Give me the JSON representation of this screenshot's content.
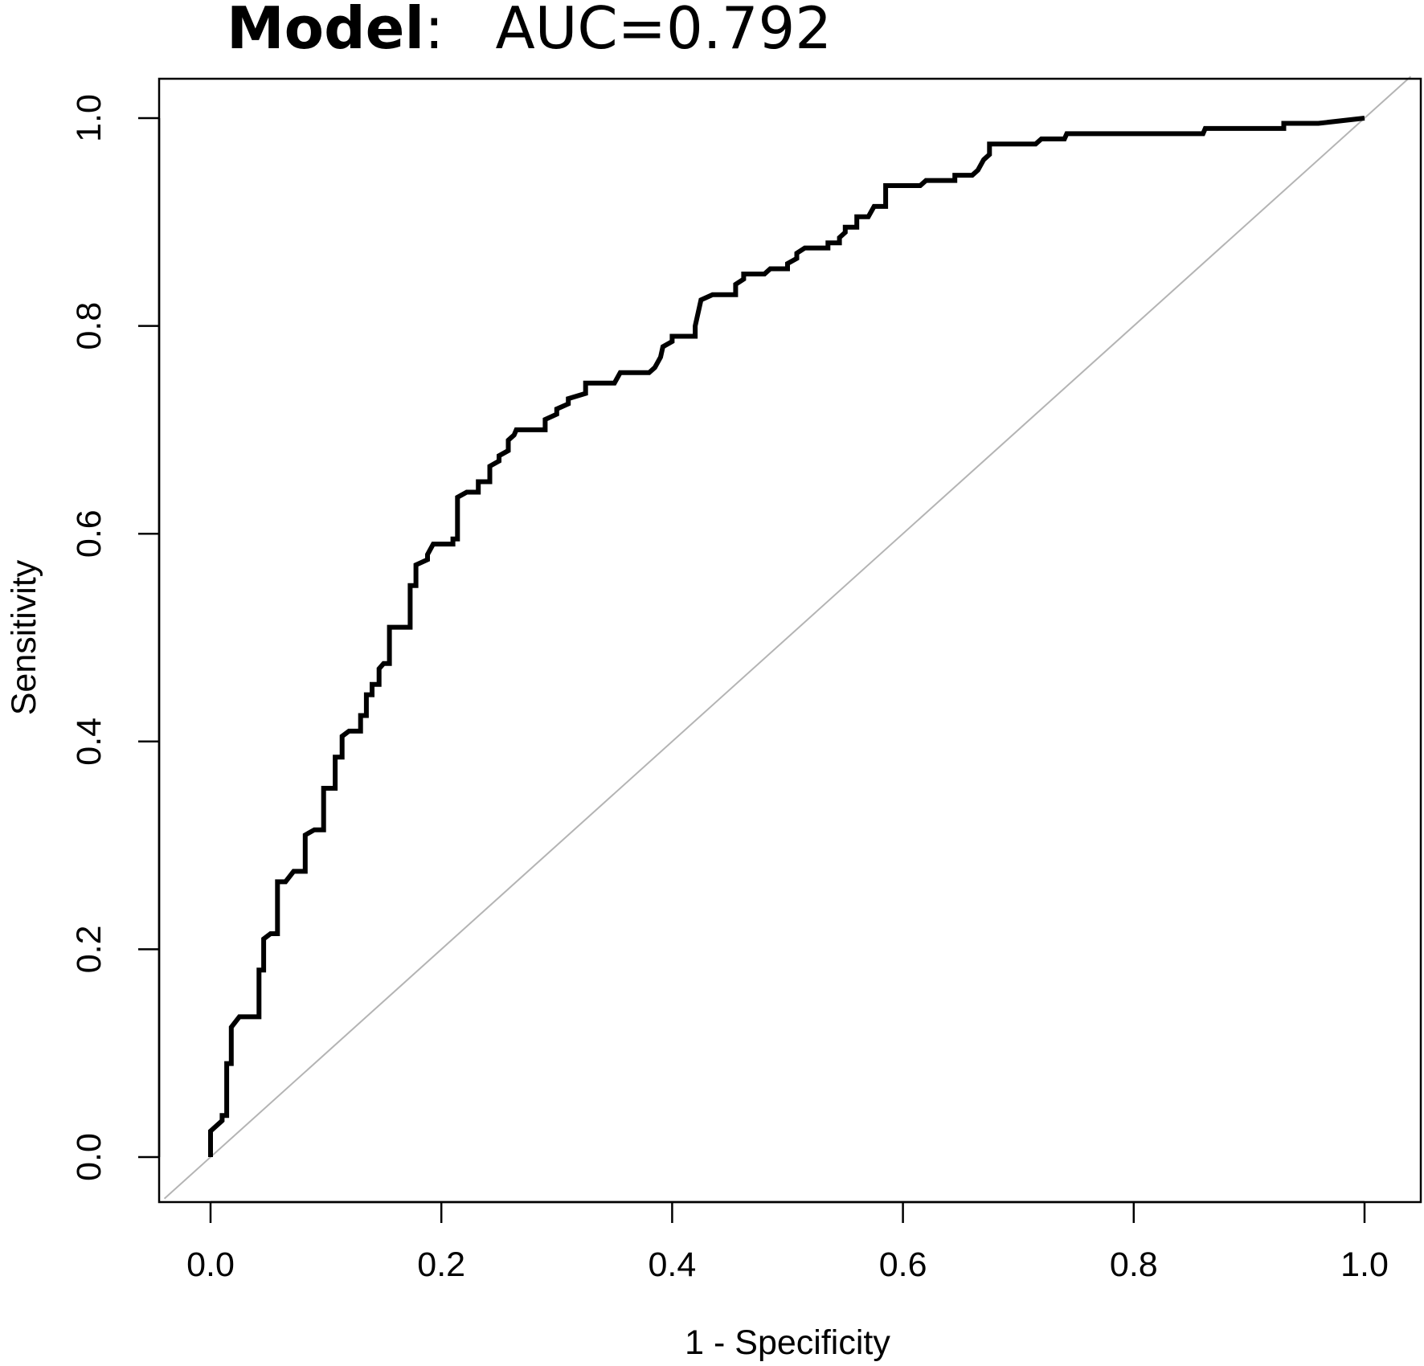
{
  "chart_data": {
    "type": "line",
    "title_bold": "Model",
    "title_sep": ":",
    "title_rest": "AUC=0.792",
    "xlabel": "1 - Specificity",
    "ylabel": "Sensitivity",
    "xlim": [
      -0.04,
      1.04
    ],
    "ylim": [
      -0.04,
      1.04
    ],
    "x_ticks": [
      "0.0",
      "0.2",
      "0.4",
      "0.6",
      "0.8",
      "1.0"
    ],
    "y_ticks": [
      "0.0",
      "0.2",
      "0.4",
      "0.6",
      "0.8",
      "1.0"
    ],
    "grid": false,
    "reference_line": {
      "from": [
        -0.04,
        -0.04
      ],
      "to": [
        1.04,
        1.04
      ],
      "color": "#b4b4b4"
    },
    "series": [
      {
        "color": "#000000",
        "points": [
          [
            0.0,
            0.0
          ],
          [
            0.0,
            0.025
          ],
          [
            0.01,
            0.035
          ],
          [
            0.01,
            0.04
          ],
          [
            0.014,
            0.04
          ],
          [
            0.014,
            0.09
          ],
          [
            0.018,
            0.09
          ],
          [
            0.018,
            0.125
          ],
          [
            0.025,
            0.135
          ],
          [
            0.042,
            0.135
          ],
          [
            0.042,
            0.18
          ],
          [
            0.046,
            0.18
          ],
          [
            0.046,
            0.21
          ],
          [
            0.052,
            0.215
          ],
          [
            0.058,
            0.215
          ],
          [
            0.058,
            0.265
          ],
          [
            0.065,
            0.265
          ],
          [
            0.072,
            0.275
          ],
          [
            0.082,
            0.275
          ],
          [
            0.082,
            0.31
          ],
          [
            0.09,
            0.315
          ],
          [
            0.098,
            0.315
          ],
          [
            0.098,
            0.355
          ],
          [
            0.108,
            0.355
          ],
          [
            0.108,
            0.385
          ],
          [
            0.114,
            0.385
          ],
          [
            0.114,
            0.405
          ],
          [
            0.12,
            0.41
          ],
          [
            0.13,
            0.41
          ],
          [
            0.13,
            0.425
          ],
          [
            0.135,
            0.425
          ],
          [
            0.135,
            0.445
          ],
          [
            0.14,
            0.445
          ],
          [
            0.14,
            0.455
          ],
          [
            0.146,
            0.455
          ],
          [
            0.146,
            0.47
          ],
          [
            0.15,
            0.475
          ],
          [
            0.155,
            0.475
          ],
          [
            0.155,
            0.51
          ],
          [
            0.173,
            0.51
          ],
          [
            0.173,
            0.55
          ],
          [
            0.178,
            0.55
          ],
          [
            0.178,
            0.57
          ],
          [
            0.188,
            0.575
          ],
          [
            0.188,
            0.58
          ],
          [
            0.193,
            0.59
          ],
          [
            0.21,
            0.59
          ],
          [
            0.21,
            0.595
          ],
          [
            0.214,
            0.595
          ],
          [
            0.214,
            0.635
          ],
          [
            0.222,
            0.64
          ],
          [
            0.232,
            0.64
          ],
          [
            0.232,
            0.65
          ],
          [
            0.242,
            0.65
          ],
          [
            0.242,
            0.665
          ],
          [
            0.25,
            0.67
          ],
          [
            0.25,
            0.675
          ],
          [
            0.258,
            0.68
          ],
          [
            0.258,
            0.69
          ],
          [
            0.263,
            0.695
          ],
          [
            0.265,
            0.7
          ],
          [
            0.29,
            0.7
          ],
          [
            0.29,
            0.71
          ],
          [
            0.3,
            0.715
          ],
          [
            0.3,
            0.72
          ],
          [
            0.31,
            0.725
          ],
          [
            0.31,
            0.73
          ],
          [
            0.325,
            0.735
          ],
          [
            0.325,
            0.745
          ],
          [
            0.35,
            0.745
          ],
          [
            0.355,
            0.755
          ],
          [
            0.38,
            0.755
          ],
          [
            0.385,
            0.76
          ],
          [
            0.39,
            0.77
          ],
          [
            0.392,
            0.78
          ],
          [
            0.4,
            0.785
          ],
          [
            0.4,
            0.79
          ],
          [
            0.42,
            0.79
          ],
          [
            0.42,
            0.8
          ],
          [
            0.425,
            0.825
          ],
          [
            0.435,
            0.83
          ],
          [
            0.455,
            0.83
          ],
          [
            0.455,
            0.84
          ],
          [
            0.462,
            0.845
          ],
          [
            0.462,
            0.85
          ],
          [
            0.48,
            0.85
          ],
          [
            0.485,
            0.855
          ],
          [
            0.5,
            0.855
          ],
          [
            0.5,
            0.86
          ],
          [
            0.508,
            0.865
          ],
          [
            0.508,
            0.87
          ],
          [
            0.515,
            0.875
          ],
          [
            0.535,
            0.875
          ],
          [
            0.535,
            0.88
          ],
          [
            0.545,
            0.88
          ],
          [
            0.545,
            0.885
          ],
          [
            0.55,
            0.89
          ],
          [
            0.55,
            0.895
          ],
          [
            0.56,
            0.895
          ],
          [
            0.56,
            0.905
          ],
          [
            0.57,
            0.905
          ],
          [
            0.575,
            0.915
          ],
          [
            0.585,
            0.915
          ],
          [
            0.585,
            0.935
          ],
          [
            0.615,
            0.935
          ],
          [
            0.62,
            0.94
          ],
          [
            0.645,
            0.94
          ],
          [
            0.645,
            0.945
          ],
          [
            0.66,
            0.945
          ],
          [
            0.665,
            0.95
          ],
          [
            0.67,
            0.96
          ],
          [
            0.675,
            0.965
          ],
          [
            0.675,
            0.975
          ],
          [
            0.715,
            0.975
          ],
          [
            0.72,
            0.98
          ],
          [
            0.74,
            0.98
          ],
          [
            0.742,
            0.985
          ],
          [
            0.86,
            0.985
          ],
          [
            0.862,
            0.99
          ],
          [
            0.93,
            0.99
          ],
          [
            0.93,
            0.995
          ],
          [
            0.96,
            0.995
          ],
          [
            1.0,
            1.0
          ]
        ]
      }
    ]
  }
}
